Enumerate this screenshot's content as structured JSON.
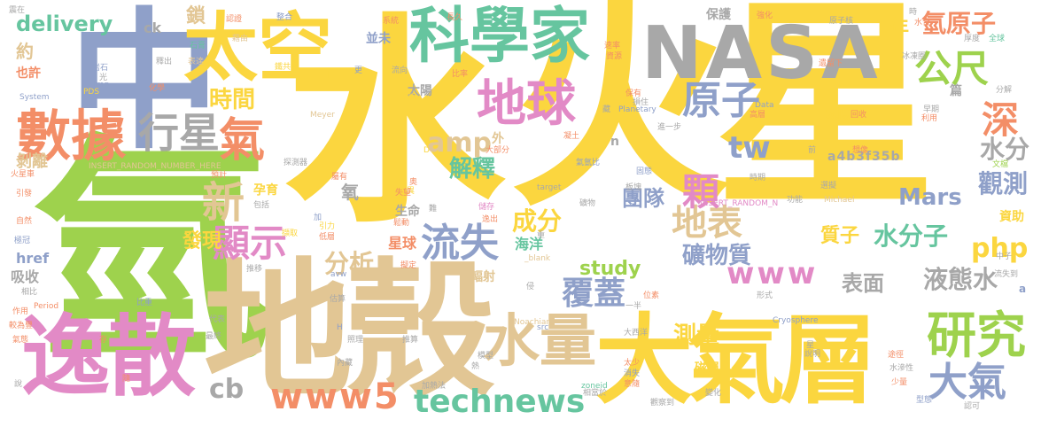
{
  "colors": {
    "yellow": "#fbd63f",
    "green": "#9ed24d",
    "blue": "#8fa0c9",
    "gray": "#a8a8a8",
    "tan": "#e2c694",
    "teal": "#66c59f",
    "orange": "#f38e67",
    "pink": "#e28ac6"
  },
  "words": [
    {
      "text": "火星",
      "color": "yellow"
    },
    {
      "text": "氫",
      "color": "green"
    },
    {
      "text": "水",
      "color": "yellow"
    },
    {
      "text": "地殼",
      "color": "tan"
    },
    {
      "text": "NASA",
      "color": "gray"
    },
    {
      "text": "中",
      "color": "blue"
    },
    {
      "text": "大氣層",
      "color": "yellow"
    },
    {
      "text": "逸散",
      "color": "pink"
    },
    {
      "text": "太空",
      "color": "yellow"
    },
    {
      "text": "科學家",
      "color": "teal"
    },
    {
      "text": "數據",
      "color": "orange"
    },
    {
      "text": "水量",
      "color": "tan"
    },
    {
      "text": "地球",
      "color": "pink"
    },
    {
      "text": "研究",
      "color": "green"
    },
    {
      "text": "行星",
      "color": "gray"
    },
    {
      "text": "氣",
      "color": "orange"
    },
    {
      "text": "原子",
      "color": "blue"
    },
    {
      "text": "大氣",
      "color": "blue"
    },
    {
      "text": "公尺",
      "color": "green"
    },
    {
      "text": "氫原子",
      "color": "orange"
    },
    {
      "text": "technews",
      "color": "teal"
    },
    {
      "text": "www5",
      "color": "orange"
    },
    {
      "text": "delivery",
      "color": "teal"
    },
    {
      "text": "流失",
      "color": "blue"
    },
    {
      "text": "新",
      "color": "tan"
    },
    {
      "text": "顯示",
      "color": "pink"
    },
    {
      "text": "覆蓋",
      "color": "blue"
    },
    {
      "text": "地表",
      "color": "tan"
    },
    {
      "text": "深",
      "color": "orange"
    },
    {
      "text": "顆",
      "color": "pink"
    },
    {
      "text": "www",
      "color": "pink"
    },
    {
      "text": "tw",
      "color": "blue"
    },
    {
      "text": "時間",
      "color": "yellow"
    },
    {
      "text": "解釋",
      "color": "teal"
    },
    {
      "text": "amp",
      "color": "tan"
    },
    {
      "text": "cb",
      "color": "gray"
    },
    {
      "text": "水分子",
      "color": "teal"
    },
    {
      "text": "觀測",
      "color": "blue"
    },
    {
      "text": "水分",
      "color": "gray"
    },
    {
      "text": "液態水",
      "color": "gray"
    },
    {
      "text": "php",
      "color": "yellow"
    },
    {
      "text": "Mars",
      "color": "blue"
    },
    {
      "text": "團隊",
      "color": "blue"
    },
    {
      "text": "成分",
      "color": "yellow"
    },
    {
      "text": "分析",
      "color": "tan"
    },
    {
      "text": "發現",
      "color": "yellow"
    },
    {
      "text": "礦物質",
      "color": "blue"
    },
    {
      "text": "測量",
      "color": "yellow"
    },
    {
      "text": "study",
      "color": "green"
    },
    {
      "text": "表面",
      "color": "gray"
    },
    {
      "text": "鎖",
      "color": "tan"
    },
    {
      "text": "約",
      "color": "tan"
    },
    {
      "text": "也許",
      "color": "orange"
    },
    {
      "text": "年",
      "color": "yellow"
    },
    {
      "text": "氧",
      "color": "gray"
    },
    {
      "text": "質子",
      "color": "yellow"
    },
    {
      "text": "太陽風",
      "color": "yellow"
    },
    {
      "text": "a4b3f35b",
      "color": "gray"
    },
    {
      "text": "資助",
      "color": "yellow"
    },
    {
      "text": "磁層",
      "color": "yellow"
    },
    {
      "text": "ck",
      "color": "gray"
    },
    {
      "text": "海洋",
      "color": "teal"
    },
    {
      "text": "星球",
      "color": "orange"
    },
    {
      "text": "孕育",
      "color": "yellow"
    },
    {
      "text": "剝離",
      "color": "tan"
    },
    {
      "text": "吸收",
      "color": "gray"
    },
    {
      "text": "href",
      "color": "blue"
    },
    {
      "text": "並未",
      "color": "blue"
    },
    {
      "text": "太陽",
      "color": "gray"
    },
    {
      "text": "輻射",
      "color": "tan"
    },
    {
      "text": "生命",
      "color": "gray"
    },
    {
      "text": "外",
      "color": "tan"
    },
    {
      "text": "n",
      "color": "gray"
    },
    {
      "text": "a",
      "color": "blue"
    },
    {
      "text": "保護",
      "color": "gray"
    },
    {
      "text": "篇",
      "color": "gray"
    },
    {
      "text": "INSERT_RANDOM_NUMBER_HERE",
      "color": "tan"
    },
    {
      "text": "INSERT_RANDOM_N",
      "color": "pink"
    },
    {
      "text": "Planetary",
      "color": "blue"
    },
    {
      "text": "Meyer",
      "color": "tan"
    },
    {
      "text": "System",
      "color": "blue"
    },
    {
      "text": "Michael",
      "color": "tan"
    },
    {
      "text": "Cryosphere",
      "color": "blue"
    },
    {
      "text": "Noachian",
      "color": "tan"
    },
    {
      "text": "Period",
      "color": "orange"
    },
    {
      "text": "PDS",
      "color": "yellow"
    },
    {
      "text": "Data",
      "color": "blue"
    },
    {
      "text": "zoneid",
      "color": "teal"
    },
    {
      "text": "target",
      "color": "gray"
    },
    {
      "text": "_blank",
      "color": "tan"
    },
    {
      "text": "img",
      "color": "blue"
    },
    {
      "text": "src",
      "color": "blue"
    },
    {
      "text": "avw",
      "color": "blue"
    },
    {
      "text": "D",
      "color": "yellow"
    },
    {
      "text": "H",
      "color": "blue"
    },
    {
      "text": "岩石",
      "color": "blue"
    },
    {
      "text": "石膏",
      "color": "teal"
    },
    {
      "text": "釋出",
      "color": "gray"
    },
    {
      "text": "化學",
      "color": "orange"
    },
    {
      "text": "光",
      "color": "gray"
    },
    {
      "text": "藉由",
      "color": "tan"
    },
    {
      "text": "表達",
      "color": "tan"
    },
    {
      "text": "鐵共流",
      "color": "yellow"
    },
    {
      "text": "更",
      "color": "blue"
    },
    {
      "text": "流向",
      "color": "gray"
    },
    {
      "text": "錯綜",
      "color": "yellow"
    },
    {
      "text": "比率",
      "color": "orange"
    },
    {
      "text": "大部分",
      "color": "orange"
    },
    {
      "text": "凝土",
      "color": "orange"
    },
    {
      "text": "氣氫比",
      "color": "blue"
    },
    {
      "text": "進一步",
      "color": "gray"
    },
    {
      "text": "保有",
      "color": "orange"
    },
    {
      "text": "固態",
      "color": "blue"
    },
    {
      "text": "礦物",
      "color": "gray"
    },
    {
      "text": "探測器",
      "color": "gray"
    },
    {
      "text": "火星車",
      "color": "orange"
    },
    {
      "text": "引發",
      "color": "orange"
    },
    {
      "text": "自然",
      "color": "orange"
    },
    {
      "text": "極冠",
      "color": "blue"
    },
    {
      "text": "相比",
      "color": "gray"
    },
    {
      "text": "作用",
      "color": "orange"
    },
    {
      "text": "較為豐",
      "color": "orange"
    },
    {
      "text": "氣態",
      "color": "orange"
    },
    {
      "text": "說",
      "color": "gray"
    },
    {
      "text": "存",
      "color": "orange"
    },
    {
      "text": "比重",
      "color": "blue"
    },
    {
      "text": "代表",
      "color": "gray"
    },
    {
      "text": "最終",
      "color": "gray"
    },
    {
      "text": "估算",
      "color": "gray"
    },
    {
      "text": "照理",
      "color": "gray"
    },
    {
      "text": "推算",
      "color": "gray"
    },
    {
      "text": "內藏",
      "color": "gray"
    },
    {
      "text": "模型",
      "color": "gray"
    },
    {
      "text": "熱",
      "color": "gray"
    },
    {
      "text": "加熱法",
      "color": "gray"
    },
    {
      "text": "相當於",
      "color": "gray"
    },
    {
      "text": "觀察到",
      "color": "gray"
    },
    {
      "text": "變化",
      "color": "gray"
    },
    {
      "text": "太少",
      "color": "orange"
    },
    {
      "text": "消失",
      "color": "blue"
    },
    {
      "text": "意隨",
      "color": "orange"
    },
    {
      "text": "大西洋",
      "color": "gray"
    },
    {
      "text": "一半",
      "color": "gray"
    },
    {
      "text": "位素",
      "color": "orange"
    },
    {
      "text": "形式",
      "color": "gray"
    },
    {
      "text": "途徑",
      "color": "orange"
    },
    {
      "text": "水滲性",
      "color": "gray"
    },
    {
      "text": "少量",
      "color": "orange"
    },
    {
      "text": "型態",
      "color": "blue"
    },
    {
      "text": "流失到",
      "color": "gray"
    },
    {
      "text": "中子",
      "color": "gray"
    },
    {
      "text": "分解",
      "color": "gray"
    },
    {
      "text": "利用",
      "color": "orange"
    },
    {
      "text": "早期",
      "color": "gray"
    },
    {
      "text": "回收",
      "color": "orange"
    },
    {
      "text": "高層",
      "color": "orange"
    },
    {
      "text": "想像",
      "color": "orange"
    },
    {
      "text": "文檔",
      "color": "green"
    },
    {
      "text": "遺留下",
      "color": "orange"
    },
    {
      "text": "厚度",
      "color": "gray"
    },
    {
      "text": "全球",
      "color": "teal"
    },
    {
      "text": "冰凍圈",
      "color": "gray"
    },
    {
      "text": "原子核",
      "color": "gray"
    },
    {
      "text": "水合",
      "color": "orange"
    },
    {
      "text": "時",
      "color": "gray"
    },
    {
      "text": "強化",
      "color": "orange"
    },
    {
      "text": "速率",
      "color": "orange"
    },
    {
      "text": "資源",
      "color": "orange"
    },
    {
      "text": "損住",
      "color": "gray"
    },
    {
      "text": "系統",
      "color": "orange"
    },
    {
      "text": "整合",
      "color": "blue"
    },
    {
      "text": "長久",
      "color": "orange"
    },
    {
      "text": "認證",
      "color": "orange"
    },
    {
      "text": "藏",
      "color": "gray"
    },
    {
      "text": "前",
      "color": "gray"
    },
    {
      "text": "選擬",
      "color": "gray"
    },
    {
      "text": "時期",
      "color": "gray"
    },
    {
      "text": "功能",
      "color": "gray"
    },
    {
      "text": "板塊",
      "color": "gray"
    },
    {
      "text": "差異",
      "color": "yellow"
    },
    {
      "text": "儲存",
      "color": "pink"
    },
    {
      "text": "引力",
      "color": "yellow"
    },
    {
      "text": "低層",
      "color": "orange"
    },
    {
      "text": "擷取",
      "color": "yellow"
    },
    {
      "text": "包括",
      "color": "gray"
    },
    {
      "text": "預計",
      "color": "orange"
    },
    {
      "text": "屬有",
      "color": "orange"
    },
    {
      "text": "推移",
      "color": "gray"
    },
    {
      "text": "侵",
      "color": "gray"
    },
    {
      "text": "重",
      "color": "gray"
    },
    {
      "text": "難",
      "color": "gray"
    },
    {
      "text": "加",
      "color": "blue"
    },
    {
      "text": "逸出",
      "color": "orange"
    },
    {
      "text": "鬆動",
      "color": "orange"
    },
    {
      "text": "奥",
      "color": "orange"
    },
    {
      "text": "失望",
      "color": "orange"
    },
    {
      "text": "擬定",
      "color": "orange"
    },
    {
      "text": "星",
      "color": "gray"
    },
    {
      "text": "說明",
      "color": "gray"
    },
    {
      "text": "震在",
      "color": "gray"
    },
    {
      "text": "認可",
      "color": "gray"
    },
    {
      "text": "隨",
      "color": "orange"
    }
  ]
}
